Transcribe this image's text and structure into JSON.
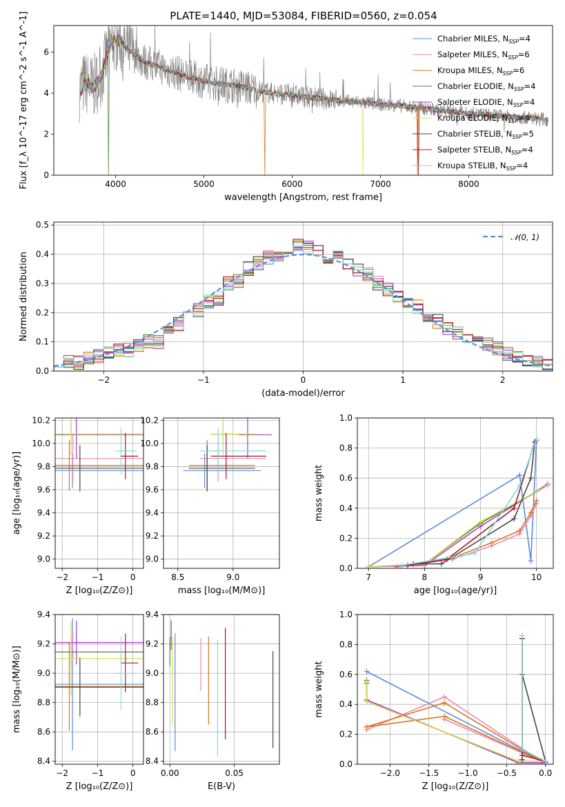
{
  "colors": {
    "chabrier_miles": "#5b8bd8",
    "salpeter_miles": "#e887b6",
    "kroupa_miles": "#d9731f",
    "chabrier_elodie": "#4f7f3f",
    "salpeter_elodie": "#a23bc9",
    "kroupa_elodie": "#d5df4c",
    "chabrier_stelib": "#444444",
    "salpeter_stelib": "#a3161d",
    "kroupa_stelib": "#7fd9dc",
    "data": "#808080"
  },
  "legend": [
    {
      "key": "chabrier_miles",
      "base": "Chabrier MILES, N",
      "sub": "SSP",
      "tail": "=4"
    },
    {
      "key": "salpeter_miles",
      "base": "Salpeter MILES, N",
      "sub": "SSP",
      "tail": "=6"
    },
    {
      "key": "kroupa_miles",
      "base": "Kroupa MILES, N",
      "sub": "SSP",
      "tail": "=6"
    },
    {
      "key": "chabrier_elodie",
      "base": "Chabrier ELODIE, N",
      "sub": "SSP",
      "tail": "=4"
    },
    {
      "key": "salpeter_elodie",
      "base": "Salpeter ELODIE, N",
      "sub": "SSP",
      "tail": "=4"
    },
    {
      "key": "kroupa_elodie",
      "base": "Kroupa ELODIE, N",
      "sub": "SSP",
      "tail": "=4"
    },
    {
      "key": "chabrier_stelib",
      "base": "Chabrier STELIB, N",
      "sub": "SSP",
      "tail": "=5"
    },
    {
      "key": "salpeter_stelib",
      "base": "Salpeter STELIB, N",
      "sub": "SSP",
      "tail": "=4"
    },
    {
      "key": "kroupa_stelib",
      "base": "Kroupa STELIB, N",
      "sub": "SSP",
      "tail": "=4"
    }
  ],
  "chart_data": [
    {
      "type": "line",
      "title": "PLATE=1440, MJD=53084, FIBERID=0560, z=0.054",
      "xlabel": "wavelength [Angstrom, rest frame]",
      "ylabel": "Flux [f_λ 10^-17 erg cm^-2 s^-1 A^-1]",
      "xlim": [
        3300,
        8950
      ],
      "ylim": [
        0,
        7.3
      ],
      "xticks": [
        4000,
        5000,
        6000,
        7000,
        8000
      ],
      "yticks": [
        0,
        2,
        4,
        6
      ],
      "grid": false,
      "legend_position": "upper-right",
      "spectrum_knots": {
        "x": [
          3600,
          3650,
          3700,
          3750,
          3800,
          3850,
          3900,
          3950,
          4000,
          4100,
          4200,
          4300,
          4400,
          4500,
          4600,
          4700,
          4800,
          4900,
          5000,
          5100,
          5200,
          5300,
          5400,
          5500,
          5600,
          5700,
          5800,
          5900,
          6000,
          6100,
          6200,
          6300,
          6400,
          6500,
          6600,
          6700,
          6800,
          6900,
          7000,
          7100,
          7200,
          7300,
          7400,
          7500,
          7600,
          7700,
          7800,
          7900,
          8000,
          8100,
          8200,
          8300,
          8400,
          8500,
          8600,
          8700,
          8800,
          8900
        ],
        "y": [
          4.2,
          4.5,
          4.4,
          4.3,
          4.6,
          5.0,
          5.8,
          6.4,
          6.6,
          6.3,
          5.9,
          5.6,
          5.4,
          5.3,
          5.1,
          5.0,
          4.8,
          4.7,
          4.6,
          4.5,
          4.45,
          4.4,
          4.35,
          4.25,
          4.15,
          4.05,
          4.0,
          3.95,
          3.9,
          3.85,
          3.8,
          3.75,
          3.7,
          3.65,
          3.6,
          3.58,
          3.55,
          3.5,
          3.45,
          3.42,
          3.4,
          3.35,
          3.3,
          3.25,
          3.2,
          3.15,
          3.1,
          3.05,
          3.0,
          2.98,
          2.95,
          2.9,
          2.88,
          2.85,
          2.82,
          2.8,
          2.75,
          2.7
        ]
      },
      "model_dips": [
        {
          "series": "kroupa_miles",
          "x": 5690
        },
        {
          "series": "kroupa_miles",
          "x": 7420
        },
        {
          "series": "salpeter_stelib",
          "x": 7430
        },
        {
          "series": "kroupa_elodie",
          "x": 6800
        },
        {
          "series": "chabrier_elodie",
          "x": 3920
        }
      ]
    },
    {
      "type": "line",
      "xlabel": "(data-model)/error",
      "ylabel": "Normed distribution",
      "xlim": [
        -2.5,
        2.5
      ],
      "ylim": [
        0,
        0.51
      ],
      "xticks": [
        -2,
        -1,
        0,
        1,
        2
      ],
      "yticks": [
        0.0,
        0.1,
        0.2,
        0.3,
        0.4,
        0.5
      ],
      "grid": true,
      "legend_position": "upper-right",
      "gaussian_label": "𝒩(0, 1)",
      "bins": [
        -2.5,
        -2.4,
        -2.3,
        -2.2,
        -2.1,
        -2.0,
        -1.9,
        -1.8,
        -1.7,
        -1.6,
        -1.5,
        -1.4,
        -1.3,
        -1.2,
        -1.1,
        -1.0,
        -0.9,
        -0.8,
        -0.7,
        -0.6,
        -0.5,
        -0.4,
        -0.3,
        -0.2,
        -0.1,
        0.0,
        0.1,
        0.2,
        0.3,
        0.4,
        0.5,
        0.6,
        0.7,
        0.8,
        0.9,
        1.0,
        1.1,
        1.2,
        1.3,
        1.4,
        1.5,
        1.6,
        1.7,
        1.8,
        1.9,
        2.0,
        2.1,
        2.2,
        2.3,
        2.4,
        2.5
      ],
      "histogram_base": [
        0.04,
        0.03,
        0.03,
        0.04,
        0.05,
        0.06,
        0.07,
        0.07,
        0.09,
        0.1,
        0.1,
        0.13,
        0.16,
        0.19,
        0.21,
        0.24,
        0.25,
        0.3,
        0.31,
        0.35,
        0.37,
        0.39,
        0.4,
        0.41,
        0.43,
        0.42,
        0.42,
        0.39,
        0.4,
        0.37,
        0.35,
        0.33,
        0.3,
        0.28,
        0.25,
        0.23,
        0.22,
        0.19,
        0.17,
        0.15,
        0.13,
        0.12,
        0.1,
        0.09,
        0.08,
        0.06,
        0.05,
        0.04,
        0.03,
        0.02
      ]
    },
    {
      "type": "scatter",
      "xlabel": "Z [log₁₀(Z/Z⊙)]",
      "ylabel": "age  [log₁₀(age/yr)]",
      "xlim": [
        -2.2,
        0.3
      ],
      "ylim": [
        8.92,
        10.22
      ],
      "xticks": [
        -2,
        -1,
        0
      ],
      "yticks": [
        9.0,
        9.2,
        9.4,
        9.6,
        9.8,
        10.0,
        10.2
      ],
      "grid": true,
      "points": [
        {
          "series": "chabrier_miles",
          "x": -0.9,
          "xerr": 1.8,
          "y": 9.765,
          "yerr": 0.15
        },
        {
          "series": "salpeter_miles",
          "x": -0.8,
          "xerr": 2.0,
          "y": 9.87,
          "yerr": 0.2
        },
        {
          "series": "kroupa_miles",
          "x": -0.9,
          "xerr": 2.0,
          "y": 9.81,
          "yerr": 0.22
        },
        {
          "series": "chabrier_elodie",
          "x": -0.85,
          "xerr": 2.0,
          "y": 10.08,
          "yerr": 0.1
        },
        {
          "series": "salpeter_elodie",
          "x": -0.7,
          "xerr": 2.0,
          "y": 10.075,
          "yerr": 0.2
        },
        {
          "series": "kroupa_elodie",
          "x": -0.85,
          "xerr": 2.0,
          "y": 10.08,
          "yerr": 0.18
        },
        {
          "series": "chabrier_stelib",
          "x": -0.6,
          "xerr": 2.0,
          "y": 9.785,
          "yerr": 0.2
        },
        {
          "series": "salpeter_stelib",
          "x": -0.1,
          "xerr": 0.25,
          "y": 9.89,
          "yerr": 0.2
        },
        {
          "series": "kroupa_stelib",
          "x": -0.2,
          "xerr": 0.3,
          "y": 9.935,
          "yerr": 0.2
        }
      ]
    },
    {
      "type": "scatter",
      "xlabel": "mass [log₁₀(M/M⊙)]",
      "xlim": [
        8.37,
        9.42
      ],
      "ylim": [
        8.92,
        10.22
      ],
      "xticks": [
        8.5,
        9.0
      ],
      "yticks": [
        9.0,
        9.2,
        9.4,
        9.6,
        9.8,
        10.0,
        10.2
      ],
      "grid": true,
      "points": [
        {
          "series": "chabrier_miles",
          "x": 8.9,
          "xerr": 0.35,
          "y": 9.765,
          "yerr": 0.15
        },
        {
          "series": "salpeter_miles",
          "x": 9.0,
          "xerr": 0.3,
          "y": 9.87,
          "yerr": 0.2
        },
        {
          "series": "kroupa_miles",
          "x": 8.9,
          "xerr": 0.3,
          "y": 9.81,
          "yerr": 0.22
        },
        {
          "series": "chabrier_elodie",
          "x": 9.0,
          "xerr": 0.2,
          "y": 10.08,
          "yerr": 0.1
        },
        {
          "series": "salpeter_elodie",
          "x": 9.2,
          "xerr": 0.15,
          "y": 10.075,
          "yerr": 0.2
        },
        {
          "series": "kroupa_elodie",
          "x": 9.0,
          "xerr": 0.2,
          "y": 10.08,
          "yerr": 0.18
        },
        {
          "series": "chabrier_stelib",
          "x": 8.9,
          "xerr": 0.3,
          "y": 9.785,
          "yerr": 0.2
        },
        {
          "series": "salpeter_stelib",
          "x": 9.05,
          "xerr": 0.25,
          "y": 9.89,
          "yerr": 0.2
        },
        {
          "series": "kroupa_stelib",
          "x": 9.0,
          "xerr": 0.3,
          "y": 9.935,
          "yerr": 0.2
        }
      ]
    },
    {
      "type": "line",
      "xlabel": "age  [log₁₀(age/yr)]",
      "ylabel": "mass weight",
      "xlim": [
        6.8,
        10.3
      ],
      "ylim": [
        0,
        1.0
      ],
      "xticks": [
        7,
        8,
        9,
        10
      ],
      "yticks": [
        0.0,
        0.2,
        0.4,
        0.6,
        0.8,
        1.0
      ],
      "grid": true,
      "series": [
        {
          "key": "chabrier_miles",
          "x": [
            7.0,
            9.7,
            9.9,
            10.0
          ],
          "y": [
            0.01,
            0.62,
            0.05,
            0.85
          ]
        },
        {
          "key": "salpeter_miles",
          "x": [
            7.5,
            8.5,
            9.2,
            9.7,
            9.9,
            10.0
          ],
          "y": [
            0.01,
            0.06,
            0.15,
            0.23,
            0.35,
            0.43
          ]
        },
        {
          "key": "kroupa_miles",
          "x": [
            7.5,
            8.5,
            9.2,
            9.7,
            9.9,
            10.0
          ],
          "y": [
            0.01,
            0.07,
            0.17,
            0.25,
            0.37,
            0.45
          ]
        },
        {
          "key": "chabrier_elodie",
          "x": [
            7.0,
            8.0,
            9.0,
            10.2
          ],
          "y": [
            0.01,
            0.03,
            0.3,
            0.55
          ]
        },
        {
          "key": "salpeter_elodie",
          "x": [
            7.0,
            8.0,
            9.0,
            10.2
          ],
          "y": [
            0.01,
            0.02,
            0.28,
            0.56
          ]
        },
        {
          "key": "kroupa_elodie",
          "x": [
            7.0,
            8.0,
            9.0,
            10.2
          ],
          "y": [
            0.01,
            0.03,
            0.31,
            0.55
          ]
        },
        {
          "key": "chabrier_stelib",
          "x": [
            7.8,
            8.3,
            9.6,
            9.9,
            9.97
          ],
          "y": [
            0.03,
            0.03,
            0.33,
            0.6,
            0.84
          ]
        },
        {
          "key": "salpeter_stelib",
          "x": [
            7.7,
            8.4,
            9.6,
            9.97
          ],
          "y": [
            0.02,
            0.06,
            0.4,
            0.84
          ]
        },
        {
          "key": "kroupa_stelib",
          "x": [
            7.6,
            8.9,
            9.7,
            10.0
          ],
          "y": [
            0.02,
            0.1,
            0.55,
            0.86
          ]
        }
      ]
    },
    {
      "type": "scatter",
      "xlabel": "Z [log₁₀(Z/Z⊙)]",
      "ylabel": "mass [log₁₀(M/M⊙)]",
      "xlim": [
        -2.2,
        0.3
      ],
      "ylim": [
        8.38,
        9.4
      ],
      "xticks": [
        -2,
        -1,
        0
      ],
      "yticks": [
        8.4,
        8.6,
        8.8,
        9.0,
        9.2,
        9.4
      ],
      "grid": true,
      "points": [
        {
          "series": "chabrier_miles",
          "x": -0.9,
          "xerr": 1.8,
          "y": 8.925,
          "yerr": 0.45
        },
        {
          "series": "salpeter_miles",
          "x": -0.8,
          "xerr": 2.0,
          "y": 9.2,
          "yerr": 0.1
        },
        {
          "series": "kroupa_miles",
          "x": -0.9,
          "xerr": 2.0,
          "y": 8.91,
          "yerr": 0.3
        },
        {
          "series": "chabrier_elodie",
          "x": -0.85,
          "xerr": 2.0,
          "y": 9.145,
          "yerr": 0.1
        },
        {
          "series": "salpeter_elodie",
          "x": -0.7,
          "xerr": 2.0,
          "y": 9.21,
          "yerr": 0.15
        },
        {
          "series": "kroupa_elodie",
          "x": -0.85,
          "xerr": 2.0,
          "y": 9.1,
          "yerr": 0.25
        },
        {
          "series": "chabrier_stelib",
          "x": -0.6,
          "xerr": 2.0,
          "y": 8.905,
          "yerr": 0.2
        },
        {
          "series": "salpeter_stelib",
          "x": -0.1,
          "xerr": 0.25,
          "y": 9.07,
          "yerr": 0.2
        },
        {
          "series": "kroupa_stelib",
          "x": -0.2,
          "xerr": 0.3,
          "y": 9.0,
          "yerr": 0.25
        }
      ]
    },
    {
      "type": "scatter",
      "xlabel": "E(B-V)",
      "xlim": [
        -0.005,
        0.085
      ],
      "ylim": [
        8.38,
        9.4
      ],
      "xticks": [
        0.0,
        0.05
      ],
      "yticks": [
        8.4,
        8.6,
        8.8,
        9.0,
        9.2,
        9.4
      ],
      "grid": true,
      "points": [
        {
          "series": "chabrier_miles",
          "x": 0.004,
          "y": 8.87,
          "yerr": 0.4
        },
        {
          "series": "salpeter_miles",
          "x": 0.024,
          "y": 9.06,
          "yerr": 0.18
        },
        {
          "series": "kroupa_miles",
          "x": 0.03,
          "y": 8.95,
          "yerr": 0.3
        },
        {
          "series": "chabrier_elodie",
          "x": 0.0,
          "y": 9.15,
          "yerr": 0.1
        },
        {
          "series": "salpeter_elodie",
          "x": 0.001,
          "y": 9.26,
          "yerr": 0.1
        },
        {
          "series": "kroupa_elodie",
          "x": 0.002,
          "y": 8.95,
          "yerr": 0.3
        },
        {
          "series": "chabrier_stelib",
          "x": 0.08,
          "y": 8.82,
          "yerr": 0.33
        },
        {
          "series": "salpeter_stelib",
          "x": 0.043,
          "y": 8.93,
          "yerr": 0.38
        },
        {
          "series": "kroupa_stelib",
          "x": 0.037,
          "y": 8.83,
          "yerr": 0.4
        }
      ]
    },
    {
      "type": "line",
      "xlabel": "Z [log₁₀(Z/Z⊙)]",
      "ylabel": "mass weight",
      "xlim": [
        -2.42,
        0.1
      ],
      "ylim": [
        0,
        1.0
      ],
      "xticks": [
        -2.0,
        -1.5,
        -1.0,
        -0.5,
        0.0
      ],
      "yticks": [
        0.0,
        0.2,
        0.4,
        0.6,
        0.8,
        1.0
      ],
      "grid": true,
      "series": [
        {
          "key": "chabrier_miles",
          "x": [
            -2.3,
            -0.05,
            0.0
          ],
          "y": [
            0.62,
            0.02,
            0.01
          ]
        },
        {
          "key": "salpeter_miles",
          "x": [
            -2.3,
            -1.3,
            -0.05,
            -1.3
          ],
          "y": [
            0.23,
            0.45,
            0.02,
            0.3
          ]
        },
        {
          "key": "kroupa_miles",
          "x": [
            -2.3,
            -1.3,
            -0.05,
            -1.3,
            -2.3
          ],
          "y": [
            0.25,
            0.41,
            0.02,
            0.32,
            0.25
          ]
        },
        {
          "key": "chabrier_elodie",
          "x": [
            -2.3,
            -2.3,
            -0.35,
            0.0
          ],
          "y": [
            0.56,
            0.42,
            0.02,
            0.02
          ]
        },
        {
          "key": "salpeter_elodie",
          "x": [
            -2.3,
            -2.3,
            -0.35,
            0.0
          ],
          "y": [
            0.54,
            0.43,
            0.01,
            0.01
          ]
        },
        {
          "key": "kroupa_elodie",
          "x": [
            -2.3,
            -2.3,
            -0.35,
            0.0
          ],
          "y": [
            0.55,
            0.42,
            0.02,
            0.02
          ]
        },
        {
          "key": "chabrier_stelib",
          "x": [
            -0.3,
            -0.3,
            -0.3,
            0.0
          ],
          "y": [
            0.84,
            0.03,
            0.6,
            0.02
          ]
        },
        {
          "key": "salpeter_stelib",
          "x": [
            -0.3,
            -0.3,
            0.0
          ],
          "y": [
            0.84,
            0.06,
            0.02
          ]
        },
        {
          "key": "kroupa_stelib",
          "x": [
            -0.3,
            -0.3,
            0.0
          ],
          "y": [
            0.86,
            0.1,
            0.02
          ]
        }
      ]
    }
  ]
}
